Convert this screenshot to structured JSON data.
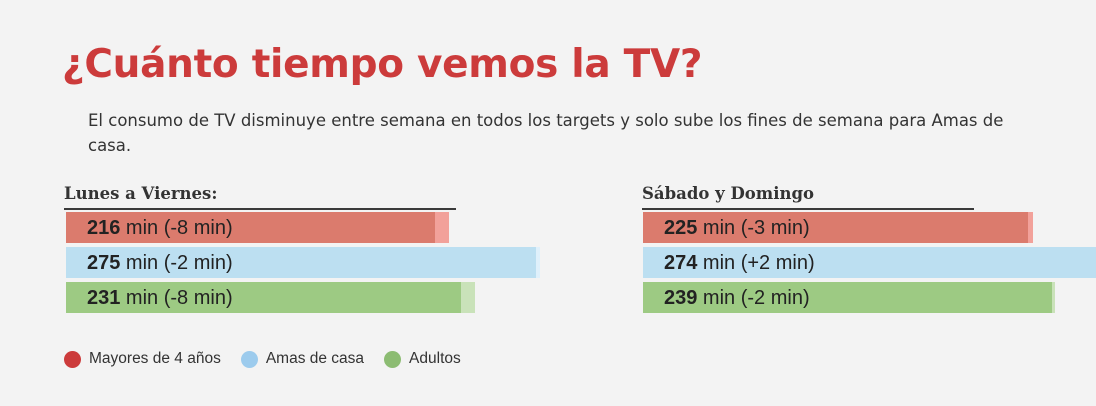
{
  "title": "¿Cuánto tiempo vemos la TV?",
  "subtitle": "El consumo de TV disminuye entre semana en todos los targets y solo sube los fines de semana para Amas de casa.",
  "colors": {
    "mayores_current": "#db7b6d",
    "mayores_prev": "#f2a19a",
    "amas_current": "#bcdff1",
    "amas_prev": "#dff0fb",
    "amas_extra": "#5aaee0",
    "adultos_current": "#9dca83",
    "adultos_prev": "#c9e2b9",
    "legend_mayores": "#cc3b3b",
    "legend_amas": "#9ccbed",
    "legend_adultos": "#8cbc72"
  },
  "legend": [
    {
      "label": "Mayores de 4 años",
      "color": "#cc3b3b",
      "icon": "circle-icon"
    },
    {
      "label": "Amas de casa",
      "color": "#9ccbed",
      "icon": "circle-icon"
    },
    {
      "label": "Adultos",
      "color": "#8cbc72",
      "icon": "circle-icon"
    }
  ],
  "chart_data": [
    {
      "type": "bar",
      "title": "Lunes a Viernes:",
      "unit": "min",
      "categories": [
        "Mayores de 4 años",
        "Amas de casa",
        "Adultos"
      ],
      "values": [
        216,
        275,
        231
      ],
      "changes": [
        -8,
        -2,
        -8
      ],
      "labels": [
        {
          "value": "216",
          "rest": " min (-8 min)"
        },
        {
          "value": "275",
          "rest": " min (-2 min)"
        },
        {
          "value": "231",
          "rest": " min (-8 min)"
        }
      ]
    },
    {
      "type": "bar",
      "title": "Sábado y Domingo",
      "unit": "min",
      "categories": [
        "Mayores de 4 años",
        "Amas de casa",
        "Adultos"
      ],
      "values": [
        225,
        274,
        239
      ],
      "changes": [
        -3,
        2,
        -2
      ],
      "labels": [
        {
          "value": "225",
          "rest": " min (-3 min)"
        },
        {
          "value": "274",
          "rest": " min (+2 min)"
        },
        {
          "value": "239",
          "rest": " min (-2 min)"
        }
      ]
    }
  ]
}
